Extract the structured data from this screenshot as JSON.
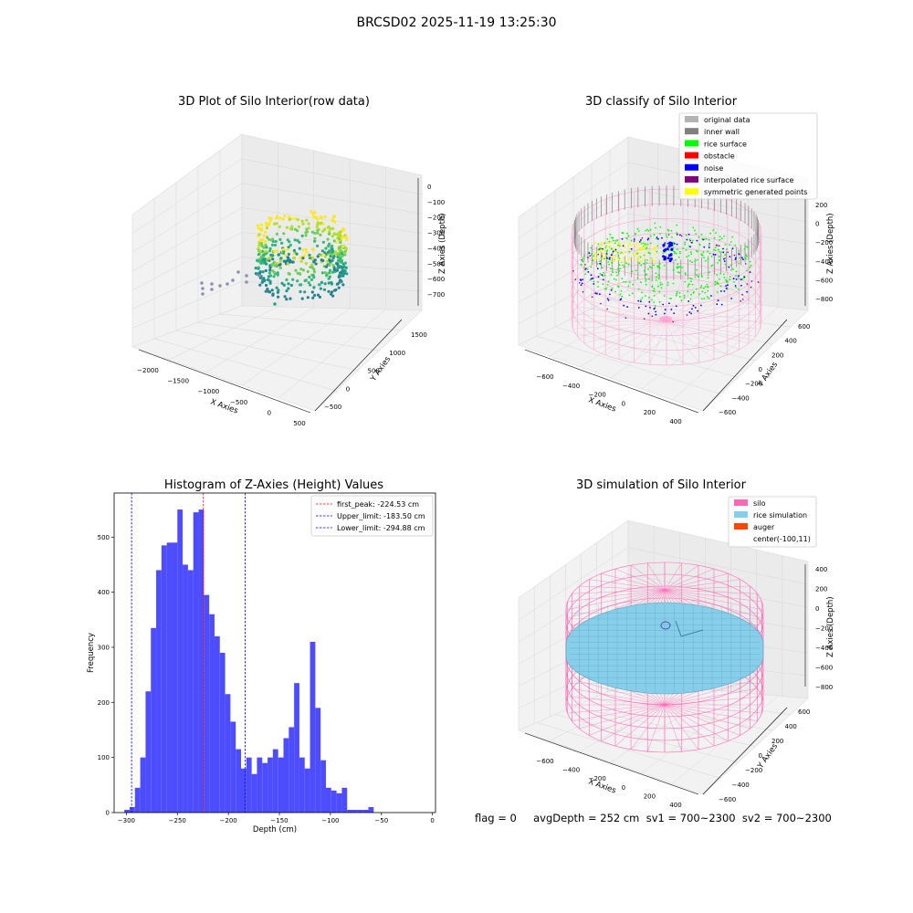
{
  "figure": {
    "suptitle": "BRCSD02 2025-11-19 13:25:30",
    "footer": "flag = 0     avgDepth = 252 cm  sv1 = 700~2300  sv2 = 700~2300"
  },
  "chart_data": [
    {
      "type": "scatter3d",
      "title": "3D Plot of Silo Interior(row data)",
      "xlabel": "X Axies",
      "ylabel": "Y Axies",
      "zlabel": "Z Axies (Depth)",
      "xticks": [
        "−2000",
        "−1500",
        "−1000",
        "−500",
        "0",
        "500"
      ],
      "yticks": [
        "−500",
        "0",
        "500",
        "1000",
        "1500"
      ],
      "zticks": [
        "0",
        "−100",
        "−200",
        "−300",
        "−400",
        "−500",
        "−600",
        "−700"
      ],
      "colormap": "viridis"
    },
    {
      "type": "scatter3d",
      "title": "3D classify of Silo Interior",
      "xlabel": "X Axies",
      "ylabel": "Y Axies",
      "zlabel": "Z Axies (Depth)",
      "xticks": [
        "−600",
        "−400",
        "−200",
        "0",
        "200",
        "400"
      ],
      "yticks": [
        "−600",
        "−400",
        "−200",
        "0",
        "200",
        "400",
        "600"
      ],
      "zticks": [
        "200",
        "0",
        "−200",
        "−400",
        "−600",
        "−800"
      ],
      "legend_position": "top-right",
      "legend": [
        {
          "label": "original data",
          "color": "#b3b3b3"
        },
        {
          "label": "inner wall",
          "color": "#808080"
        },
        {
          "label": "rice surface",
          "color": "#00ff00"
        },
        {
          "label": "obstacle",
          "color": "#ff0000"
        },
        {
          "label": "noise",
          "color": "#0000ff"
        },
        {
          "label": "interpolated rice surface",
          "color": "#800080"
        },
        {
          "label": "symmetric generated points",
          "color": "#ffff00"
        }
      ],
      "wireframe_color": "#ff99cc"
    },
    {
      "type": "bar",
      "title": "Histogram of Z-Axies (Height) Values",
      "xlabel": "Depth (cm)",
      "ylabel": "Frequency",
      "xlim": [
        -312,
        3
      ],
      "ylim": [
        0,
        580
      ],
      "xticks": [
        -300,
        -250,
        -200,
        -150,
        -100,
        -50,
        0
      ],
      "xtick_labels": [
        "−300",
        "−250",
        "−200",
        "−150",
        "−100",
        "−50",
        "0"
      ],
      "yticks": [
        0,
        100,
        200,
        300,
        400,
        500
      ],
      "bar_color": "#4d4dff",
      "bin_start": -302,
      "bin_width": 5.2,
      "values": [
        5,
        10,
        45,
        100,
        220,
        335,
        440,
        485,
        490,
        490,
        550,
        450,
        440,
        545,
        550,
        395,
        360,
        320,
        290,
        215,
        165,
        115,
        80,
        100,
        70,
        100,
        90,
        100,
        115,
        100,
        135,
        155,
        235,
        100,
        80,
        310,
        190,
        95,
        45,
        40,
        35,
        45,
        5,
        5,
        5,
        5,
        10
      ],
      "lines": [
        {
          "label": "first_peak: -224.53 cm",
          "value": -224.53,
          "color": "#ff0000"
        },
        {
          "label": "Upper_limit: -183.50 cm",
          "value": -183.5,
          "color": "#0000ff"
        },
        {
          "label": "Lower_limit: -294.88 cm",
          "value": -294.88,
          "color": "#0000ff"
        }
      ],
      "legend_position": "top-right"
    },
    {
      "type": "surface3d",
      "title": "3D simulation of Silo Interior",
      "xlabel": "X Axies",
      "ylabel": "Y Axies",
      "zlabel": "Z Axies (Depth)",
      "xticks": [
        "−600",
        "−400",
        "−200",
        "0",
        "200",
        "400"
      ],
      "yticks": [
        "−600",
        "−400",
        "−200",
        "0",
        "200",
        "400",
        "600"
      ],
      "zticks": [
        "400",
        "200",
        "0",
        "−200",
        "−400",
        "−600",
        "−800"
      ],
      "legend_position": "top-right",
      "legend": [
        {
          "label": "silo",
          "color": "#ff69b4"
        },
        {
          "label": "rice simulation",
          "color": "#87ceeb"
        },
        {
          "label": "auger",
          "color": "#ff4500"
        },
        {
          "label": "center(-100,11)",
          "color": ""
        }
      ]
    }
  ]
}
